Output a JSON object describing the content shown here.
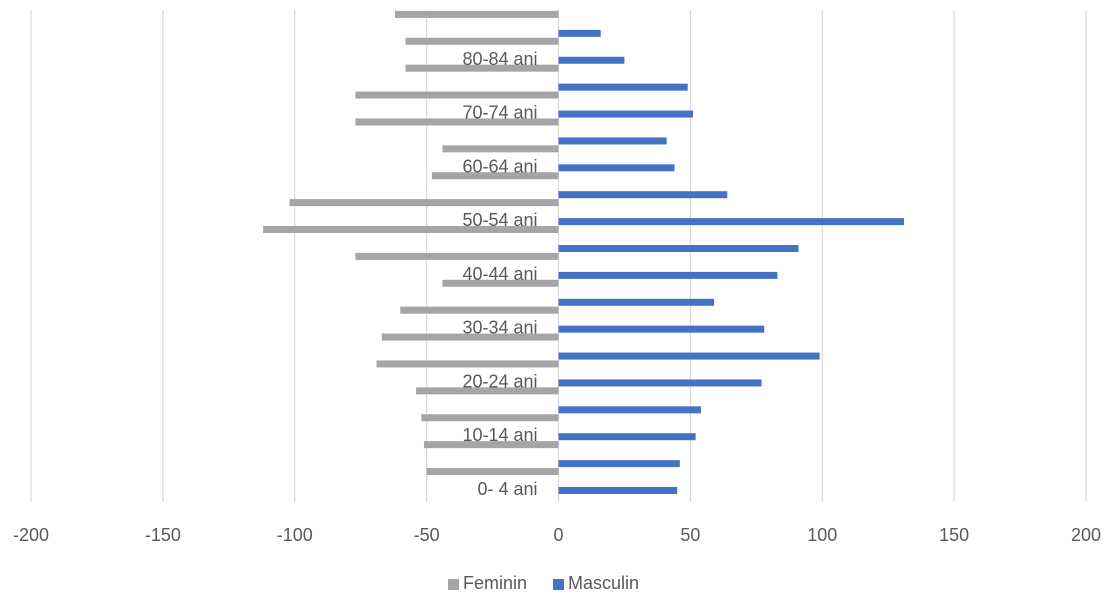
{
  "chart_data": {
    "type": "bar",
    "orientation": "horizontal",
    "title": "",
    "xlabel": "",
    "ylabel": "",
    "xlim": [
      -200,
      200
    ],
    "x_ticks": [
      -200,
      -150,
      -100,
      -50,
      0,
      50,
      100,
      150,
      200
    ],
    "grid": true,
    "legend_position": "bottom",
    "categories": [
      "0- 4 ani",
      "",
      "10-14 ani",
      "",
      "20-24 ani",
      "",
      "30-34 ani",
      "",
      "40-44 ani",
      "",
      "50-54 ani",
      "",
      "60-64 ani",
      "",
      "70-74 ani",
      "",
      "80-84 ani",
      ""
    ],
    "series": [
      {
        "name": "Feminin",
        "color": "#a5a5a5",
        "values": [
          -50,
          -51,
          -52,
          -54,
          -69,
          -67,
          -60,
          -44,
          -77,
          -112,
          -102,
          -48,
          -44,
          -77,
          -77,
          -58,
          -58,
          -62
        ]
      },
      {
        "name": "Masculin",
        "color": "#4472c4",
        "values": [
          45,
          46,
          52,
          54,
          77,
          99,
          78,
          59,
          83,
          91,
          131,
          64,
          44,
          41,
          51,
          49,
          25,
          16
        ]
      }
    ]
  }
}
